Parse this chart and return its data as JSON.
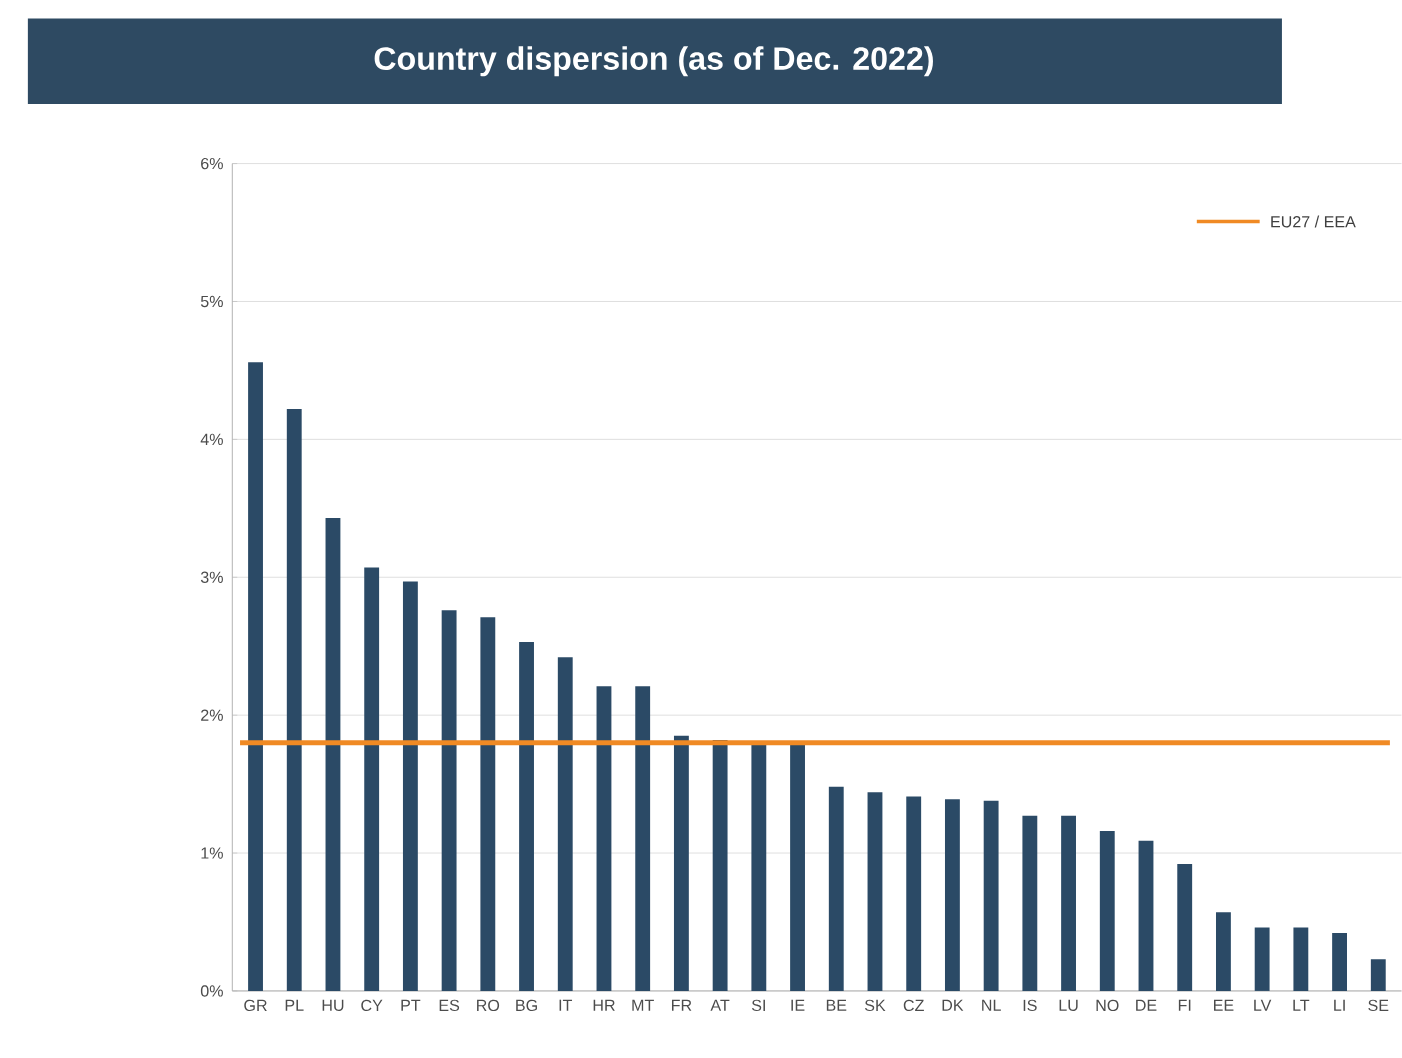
{
  "chart_data": {
    "type": "bar",
    "title": "Country dispersion (as of Dec. 2022)",
    "categories": [
      "GR",
      "PL",
      "HU",
      "CY",
      "PT",
      "ES",
      "RO",
      "BG",
      "IT",
      "HR",
      "MT",
      "FR",
      "AT",
      "SI",
      "IE",
      "BE",
      "SK",
      "CZ",
      "DK",
      "NL",
      "IS",
      "LU",
      "NO",
      "DE",
      "FI",
      "EE",
      "LV",
      "LT",
      "LI",
      "SE"
    ],
    "values": [
      4.56,
      4.22,
      3.43,
      3.07,
      2.97,
      2.76,
      2.71,
      2.53,
      2.42,
      2.21,
      2.21,
      1.85,
      1.82,
      1.79,
      1.79,
      1.48,
      1.44,
      1.41,
      1.39,
      1.38,
      1.27,
      1.27,
      1.16,
      1.09,
      0.92,
      0.57,
      0.46,
      0.46,
      0.42,
      0.23
    ],
    "color": "#2b4a66",
    "ylim": [
      0,
      6
    ],
    "yticks": [
      {
        "value": 0,
        "label": "0%"
      },
      {
        "value": 1,
        "label": "1%"
      },
      {
        "value": 2,
        "label": "2%"
      },
      {
        "value": 3,
        "label": "3%"
      },
      {
        "value": 4,
        "label": "4%"
      },
      {
        "value": 5,
        "label": "5%"
      },
      {
        "value": 6,
        "label": "6%"
      }
    ],
    "grid": "y",
    "ref_lines": [
      {
        "axis": "y",
        "value": 1.8,
        "label": "EU27 / EEA",
        "color": "#f08a24"
      }
    ]
  }
}
